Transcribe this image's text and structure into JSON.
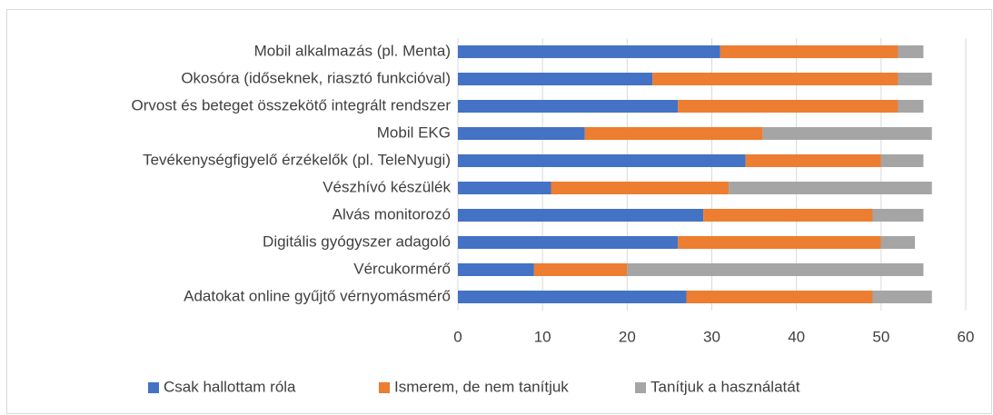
{
  "chart_data": {
    "type": "stacked-bar-horizontal",
    "categories": [
      "Mobil alkalmazás (pl. Menta)",
      "Okosóra (időseknek, riasztó funkcióval)",
      "Orvost és beteget összekötő integrált rendszer",
      "Mobil EKG",
      "Tevékenységfigyelő érzékelők (pl. TeleNyugi)",
      "Vészhívó készülék",
      "Alvás monitorozó",
      "Digitális gyógyszer adagoló",
      "Vércukormérő",
      "Adatokat online gyűjtő vérnyomásmérő"
    ],
    "series": [
      {
        "name": "Csak hallottam róla",
        "color": "#4472c4",
        "values": [
          31,
          23,
          26,
          15,
          34,
          11,
          29,
          26,
          9,
          27
        ]
      },
      {
        "name": "Ismerem, de nem tanítjuk",
        "color": "#ed7d31",
        "values": [
          21,
          29,
          26,
          21,
          16,
          21,
          20,
          24,
          11,
          22
        ]
      },
      {
        "name": "Tanítjuk a használatát",
        "color": "#a5a5a5",
        "values": [
          3,
          4,
          3,
          20,
          5,
          24,
          6,
          4,
          35,
          7
        ]
      }
    ],
    "xlim": [
      0,
      60
    ],
    "xticks": [
      0,
      10,
      20,
      30,
      40,
      50,
      60
    ],
    "grid": true,
    "legend": "bottom"
  }
}
